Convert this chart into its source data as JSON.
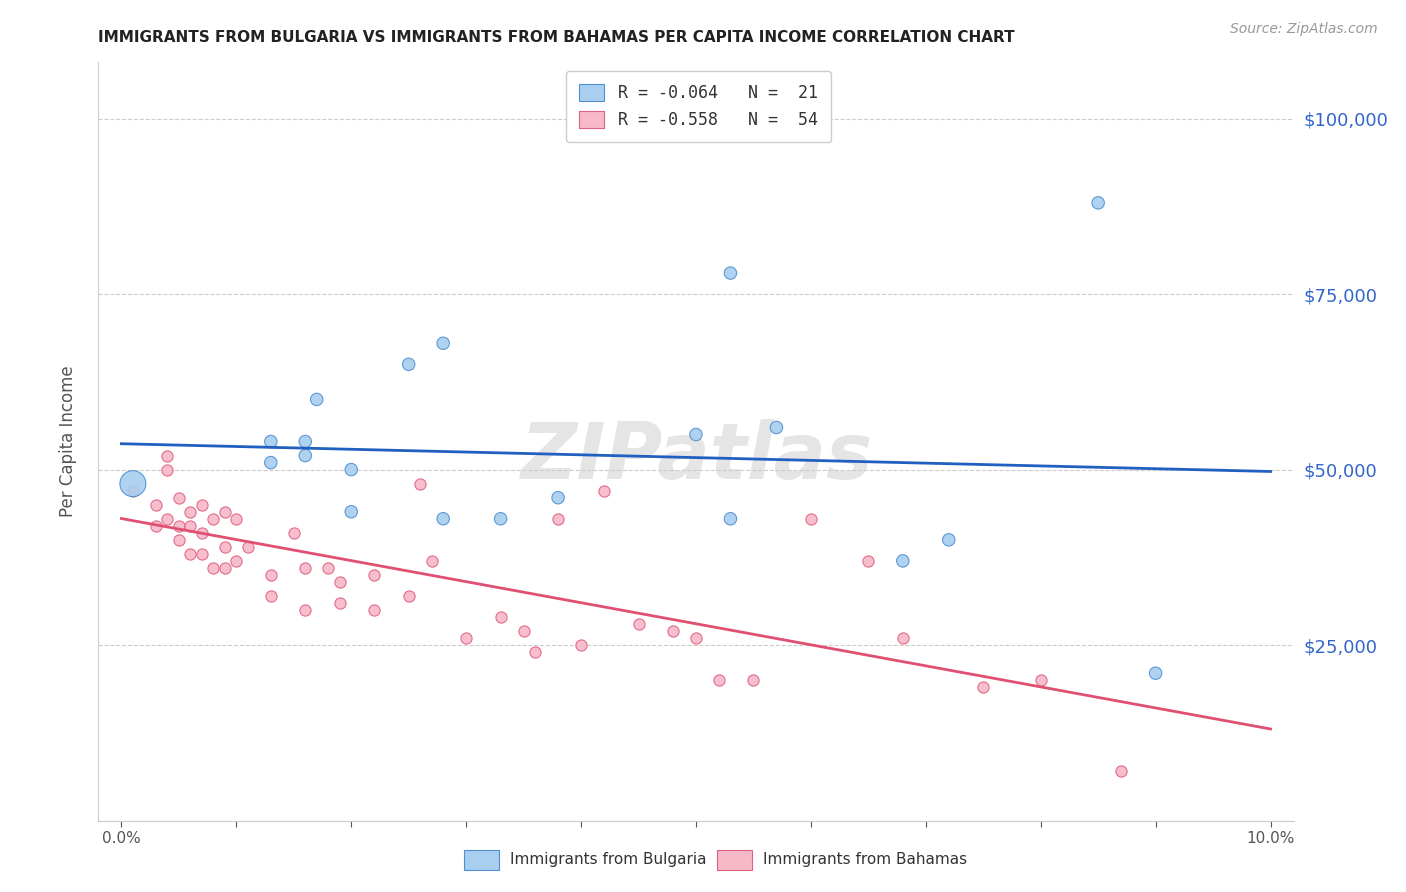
{
  "title": "IMMIGRANTS FROM BULGARIA VS IMMIGRANTS FROM BAHAMAS PER CAPITA INCOME CORRELATION CHART",
  "source": "Source: ZipAtlas.com",
  "ylabel": "Per Capita Income",
  "xlabel_ticks": [
    "0.0%",
    "",
    "",
    "",
    "",
    "",
    "",
    "",
    "",
    "",
    "10.0%"
  ],
  "xlabel_vals": [
    0.0,
    0.01,
    0.02,
    0.03,
    0.04,
    0.05,
    0.06,
    0.07,
    0.08,
    0.09,
    0.1
  ],
  "yticks": [
    0,
    25000,
    50000,
    75000,
    100000
  ],
  "ytick_labels": [
    "",
    "$25,000",
    "$50,000",
    "$75,000",
    "$100,000"
  ],
  "xlim": [
    -0.002,
    0.102
  ],
  "ylim": [
    0,
    108000
  ],
  "bg_color": "#ffffff",
  "watermark": "ZIPatlas",
  "bulgaria_color": "#a8cef0",
  "bahamas_color": "#f7b8c8",
  "bulgaria_edge_color": "#5090d0",
  "bahamas_edge_color": "#e06080",
  "bulgaria_line_color": "#2060c0",
  "bahamas_line_color": "#e05070",
  "legend_R_bulgaria": "R = -0.064",
  "legend_N_bulgaria": "N =  21",
  "legend_R_bahamas": "R = -0.558",
  "legend_N_bahamas": "N =  54",
  "bulgaria_x": [
    0.001,
    0.013,
    0.013,
    0.016,
    0.016,
    0.017,
    0.02,
    0.02,
    0.025,
    0.028,
    0.028,
    0.033,
    0.038,
    0.05,
    0.053,
    0.053,
    0.057,
    0.068,
    0.072,
    0.085,
    0.09
  ],
  "bulgaria_y": [
    48000,
    54000,
    51000,
    54000,
    52000,
    60000,
    50000,
    44000,
    65000,
    68000,
    43000,
    43000,
    46000,
    55000,
    78000,
    43000,
    56000,
    37000,
    40000,
    88000,
    21000
  ],
  "bulgaria_size": [
    350,
    80,
    80,
    80,
    80,
    80,
    80,
    80,
    80,
    80,
    80,
    80,
    80,
    80,
    80,
    80,
    80,
    80,
    80,
    80,
    80
  ],
  "bahamas_x": [
    0.001,
    0.003,
    0.003,
    0.004,
    0.004,
    0.004,
    0.005,
    0.005,
    0.005,
    0.006,
    0.006,
    0.006,
    0.007,
    0.007,
    0.007,
    0.008,
    0.008,
    0.009,
    0.009,
    0.009,
    0.01,
    0.01,
    0.011,
    0.013,
    0.013,
    0.015,
    0.016,
    0.016,
    0.018,
    0.019,
    0.019,
    0.022,
    0.022,
    0.025,
    0.026,
    0.027,
    0.03,
    0.033,
    0.035,
    0.036,
    0.038,
    0.04,
    0.042,
    0.045,
    0.048,
    0.05,
    0.052,
    0.055,
    0.06,
    0.065,
    0.068,
    0.075,
    0.08,
    0.087
  ],
  "bahamas_y": [
    47000,
    45000,
    42000,
    52000,
    50000,
    43000,
    46000,
    42000,
    40000,
    44000,
    42000,
    38000,
    45000,
    41000,
    38000,
    43000,
    36000,
    44000,
    39000,
    36000,
    43000,
    37000,
    39000,
    35000,
    32000,
    41000,
    36000,
    30000,
    36000,
    34000,
    31000,
    35000,
    30000,
    32000,
    48000,
    37000,
    26000,
    29000,
    27000,
    24000,
    43000,
    25000,
    47000,
    28000,
    27000,
    26000,
    20000,
    20000,
    43000,
    37000,
    26000,
    19000,
    20000,
    7000
  ],
  "bahamas_size": 65
}
